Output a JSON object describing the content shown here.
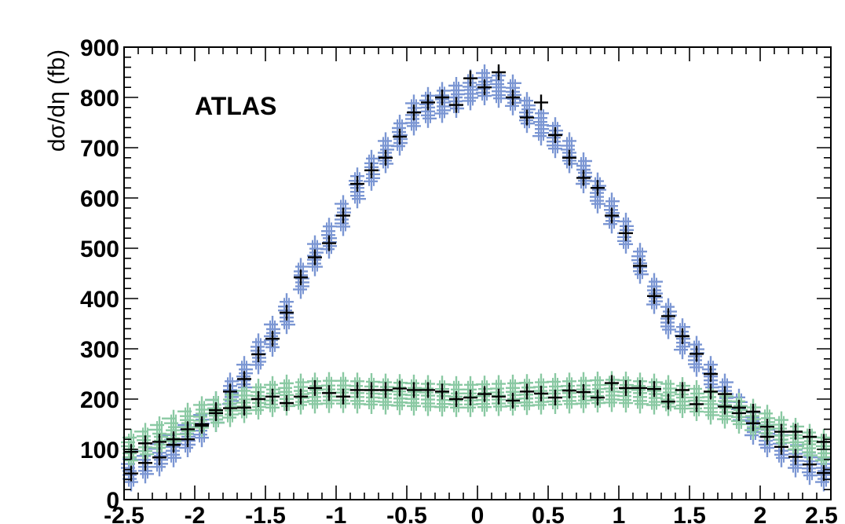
{
  "chart_data": {
    "type": "scatter",
    "title": "",
    "annotation": "ATLAS",
    "xlabel": "",
    "ylabel": "dσ/dη (fb)",
    "xlim": [
      -2.5,
      2.5
    ],
    "ylim": [
      0,
      900
    ],
    "x_ticks": [
      "-2.5",
      "-2",
      "-1.5",
      "-1",
      "-0.5",
      "0",
      "0.5",
      "1",
      "1.5",
      "2",
      "2.5"
    ],
    "y_ticks": [
      "0",
      "100",
      "200",
      "300",
      "400",
      "500",
      "600",
      "700",
      "800",
      "900"
    ],
    "grid": false,
    "legend": "none",
    "bin_half_width": 0.05,
    "series": [
      {
        "role": "blue-band",
        "color": "#7b96d3",
        "x": [
          -2.45,
          -2.35,
          -2.25,
          -2.15,
          -2.05,
          -1.95,
          -1.85,
          -1.75,
          -1.65,
          -1.55,
          -1.45,
          -1.35,
          -1.25,
          -1.15,
          -1.05,
          -0.95,
          -0.85,
          -0.75,
          -0.65,
          -0.55,
          -0.45,
          -0.35,
          -0.25,
          -0.15,
          -0.05,
          0.05,
          0.15,
          0.25,
          0.35,
          0.45,
          0.55,
          0.65,
          0.75,
          0.85,
          0.95,
          1.05,
          1.15,
          1.25,
          1.35,
          1.45,
          1.55,
          1.65,
          1.75,
          1.85,
          1.95,
          2.05,
          2.15,
          2.25,
          2.35,
          2.45
        ],
        "values": [
          57,
          73,
          87,
          105,
          125,
          145,
          175,
          212,
          245,
          290,
          325,
          370,
          440,
          485,
          520,
          565,
          620,
          655,
          690,
          725,
          765,
          780,
          790,
          800,
          815,
          825,
          820,
          805,
          770,
          745,
          720,
          690,
          650,
          610,
          570,
          530,
          470,
          410,
          360,
          320,
          285,
          245,
          210,
          180,
          150,
          125,
          105,
          85,
          70,
          57
        ]
      },
      {
        "role": "green-band",
        "color": "#8ac9a3",
        "x": [
          -2.45,
          -2.35,
          -2.25,
          -2.15,
          -2.05,
          -1.95,
          -1.85,
          -1.75,
          -1.65,
          -1.55,
          -1.45,
          -1.35,
          -1.25,
          -1.15,
          -1.05,
          -0.95,
          -0.85,
          -0.75,
          -0.65,
          -0.55,
          -0.45,
          -0.35,
          -0.25,
          -0.15,
          -0.05,
          0.05,
          0.15,
          0.25,
          0.35,
          0.45,
          0.55,
          0.65,
          0.75,
          0.85,
          0.95,
          1.05,
          1.15,
          1.25,
          1.35,
          1.45,
          1.55,
          1.65,
          1.75,
          1.85,
          1.95,
          2.05,
          2.15,
          2.25,
          2.35,
          2.45
        ],
        "values": [
          100,
          112,
          125,
          138,
          152,
          165,
          175,
          185,
          193,
          200,
          205,
          208,
          210,
          212,
          213,
          213,
          212,
          211,
          210,
          209,
          208,
          207,
          206,
          205,
          205,
          206,
          207,
          208,
          209,
          210,
          211,
          212,
          213,
          214,
          215,
          214,
          212,
          210,
          207,
          203,
          197,
          190,
          182,
          172,
          160,
          148,
          135,
          122,
          110,
          100
        ]
      },
      {
        "role": "black-upper",
        "color": "#000000",
        "x": [
          -2.45,
          -2.35,
          -2.25,
          -2.15,
          -2.05,
          -1.95,
          -1.85,
          -1.75,
          -1.65,
          -1.55,
          -1.45,
          -1.35,
          -1.25,
          -1.15,
          -1.05,
          -0.95,
          -0.85,
          -0.75,
          -0.65,
          -0.55,
          -0.45,
          -0.35,
          -0.25,
          -0.15,
          -0.05,
          0.05,
          0.15,
          0.25,
          0.35,
          0.45,
          0.55,
          0.65,
          0.75,
          0.85,
          0.95,
          1.05,
          1.15,
          1.25,
          1.35,
          1.45,
          1.55,
          1.65,
          1.75,
          1.85,
          1.95,
          2.05,
          2.15,
          2.25,
          2.35,
          2.45
        ],
        "values": [
          52,
          73,
          84,
          109,
          120,
          147,
          172,
          215,
          240,
          289,
          320,
          372,
          442,
          482,
          510,
          565,
          628,
          655,
          680,
          722,
          770,
          790,
          800,
          785,
          838,
          820,
          850,
          800,
          760,
          790,
          725,
          680,
          640,
          620,
          565,
          530,
          465,
          405,
          365,
          325,
          290,
          250,
          210,
          183,
          152,
          125,
          105,
          85,
          70,
          53
        ]
      },
      {
        "role": "black-lower",
        "color": "#000000",
        "x": [
          -2.45,
          -2.35,
          -2.25,
          -2.15,
          -2.05,
          -1.95,
          -1.85,
          -1.75,
          -1.65,
          -1.55,
          -1.45,
          -1.35,
          -1.25,
          -1.15,
          -1.05,
          -0.95,
          -0.85,
          -0.75,
          -0.65,
          -0.55,
          -0.45,
          -0.35,
          -0.25,
          -0.15,
          -0.05,
          0.05,
          0.15,
          0.25,
          0.35,
          0.45,
          0.55,
          0.65,
          0.75,
          0.85,
          0.95,
          1.05,
          1.15,
          1.25,
          1.35,
          1.45,
          1.55,
          1.65,
          1.75,
          1.85,
          1.95,
          2.05,
          2.15,
          2.25,
          2.35,
          2.45
        ],
        "values": [
          95,
          112,
          115,
          120,
          140,
          150,
          178,
          182,
          183,
          200,
          205,
          192,
          205,
          222,
          212,
          205,
          218,
          218,
          218,
          221,
          218,
          218,
          215,
          200,
          203,
          210,
          205,
          197,
          215,
          211,
          203,
          217,
          214,
          203,
          232,
          222,
          222,
          220,
          195,
          218,
          190,
          215,
          185,
          172,
          175,
          145,
          135,
          135,
          125,
          115
        ]
      }
    ]
  }
}
